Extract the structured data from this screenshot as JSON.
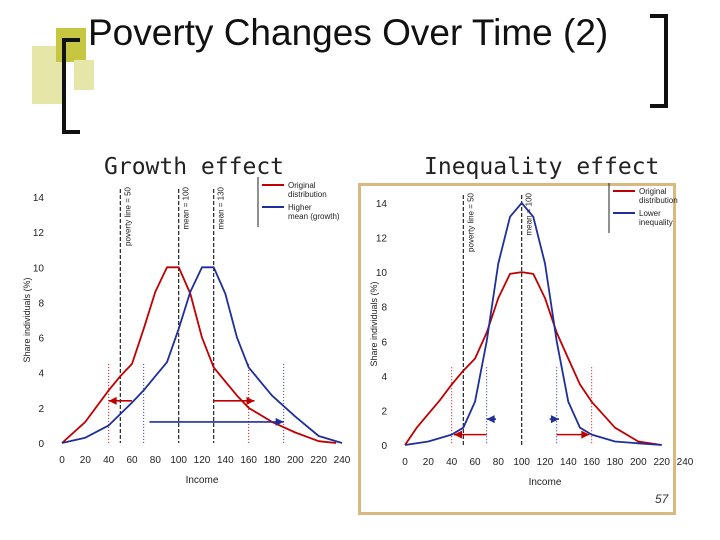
{
  "slide": {
    "title": "Poverty Changes Over Time (2)",
    "page_number": "57",
    "colors": {
      "accent_olive": "#c6c640",
      "accent_light": "#e6e6a8",
      "bracket": "#111111",
      "frame": "#d9b980"
    }
  },
  "subtitles": {
    "left": "Growth effect",
    "right": "Inequality effect"
  },
  "chart_data": [
    {
      "type": "line",
      "title": "Growth effect",
      "xlabel": "Income",
      "ylabel": "Share individuals (%)",
      "xlim": [
        0,
        240
      ],
      "ylim": [
        0,
        14
      ],
      "xticks": [
        0,
        20,
        40,
        60,
        80,
        100,
        120,
        140,
        160,
        180,
        200,
        220,
        240
      ],
      "yticks": [
        0,
        2,
        4,
        6,
        8,
        10,
        12,
        14
      ],
      "grid": false,
      "legend_position": "top-right",
      "vlines": [
        {
          "x": 50,
          "label": "poverty line = 50",
          "style": "dashed"
        },
        {
          "x": 100,
          "label": "mean = 100",
          "style": "dashed"
        },
        {
          "x": 130,
          "label": "mean = 130",
          "style": "dashed"
        }
      ],
      "range_lines": [
        {
          "x": 40,
          "color": "#c00000"
        },
        {
          "x": 160,
          "color": "#c00000"
        },
        {
          "x": 70,
          "color": "#1f2f9a"
        },
        {
          "x": 190,
          "color": "#1f2f9a"
        }
      ],
      "arrows": [
        {
          "from": 60,
          "to": 40,
          "y": 2.4,
          "color": "#c00000"
        },
        {
          "from": 130,
          "to": 165,
          "y": 2.4,
          "color": "#c00000"
        },
        {
          "from": 75,
          "to": 190,
          "y": 1.2,
          "color": "#1f2f9a"
        }
      ],
      "series": [
        {
          "name": "Original distribution",
          "color": "#c00000",
          "x": [
            0,
            20,
            40,
            50,
            60,
            70,
            80,
            90,
            100,
            110,
            120,
            130,
            140,
            150,
            160,
            180,
            200,
            220,
            235
          ],
          "y": [
            0.0,
            1.2,
            3.0,
            3.8,
            4.5,
            6.5,
            8.6,
            10.0,
            10.0,
            8.5,
            6.0,
            4.3,
            3.5,
            2.7,
            2.0,
            1.2,
            0.6,
            0.1,
            0.0
          ]
        },
        {
          "name": "Higher mean (growth)",
          "color": "#1f2f9a",
          "x": [
            0,
            20,
            40,
            60,
            70,
            80,
            90,
            100,
            110,
            120,
            130,
            140,
            150,
            160,
            170,
            180,
            200,
            220,
            240
          ],
          "y": [
            0.0,
            0.3,
            1.0,
            2.3,
            3.0,
            3.8,
            4.6,
            6.5,
            8.6,
            10.0,
            10.0,
            8.5,
            6.0,
            4.3,
            3.5,
            2.7,
            1.5,
            0.4,
            0.0
          ]
        }
      ]
    },
    {
      "type": "line",
      "title": "Inequality effect",
      "xlabel": "Income",
      "ylabel": "Share individuals (%)",
      "xlim": [
        0,
        240
      ],
      "ylim": [
        0,
        14
      ],
      "xticks": [
        0,
        20,
        40,
        60,
        80,
        100,
        120,
        140,
        160,
        180,
        200,
        220,
        240
      ],
      "yticks": [
        0,
        2,
        4,
        6,
        8,
        10,
        12,
        14
      ],
      "grid": false,
      "legend_position": "top-right",
      "vlines": [
        {
          "x": 50,
          "label": "poverty line = 50",
          "style": "dashed"
        },
        {
          "x": 100,
          "label": "mean = 100",
          "style": "dashed"
        }
      ],
      "range_lines": [
        {
          "x": 40,
          "color": "#c00000"
        },
        {
          "x": 160,
          "color": "#c00000"
        },
        {
          "x": 70,
          "color": "#1f2f9a"
        },
        {
          "x": 130,
          "color": "#1f2f9a"
        }
      ],
      "arrows": [
        {
          "from": 70,
          "to": 42,
          "y": 0.6,
          "color": "#c00000"
        },
        {
          "from": 130,
          "to": 158,
          "y": 0.6,
          "color": "#c00000"
        },
        {
          "from": 78,
          "to": 70,
          "y": 1.5,
          "color": "#1f2f9a"
        },
        {
          "from": 124,
          "to": 132,
          "y": 1.5,
          "color": "#1f2f9a"
        }
      ],
      "series": [
        {
          "name": "Original distribution",
          "color": "#c00000",
          "x": [
            0,
            10,
            20,
            30,
            40,
            50,
            60,
            70,
            80,
            90,
            100,
            110,
            120,
            130,
            140,
            150,
            160,
            180,
            200,
            220
          ],
          "y": [
            0.0,
            1.0,
            1.8,
            2.6,
            3.5,
            4.3,
            5.0,
            6.5,
            8.5,
            9.9,
            10.0,
            9.9,
            8.5,
            6.5,
            5.0,
            3.5,
            2.5,
            1.0,
            0.2,
            0.0
          ]
        },
        {
          "name": "Lower inequality",
          "color": "#1f2f9a",
          "x": [
            0,
            20,
            40,
            50,
            60,
            70,
            80,
            90,
            100,
            110,
            120,
            130,
            140,
            150,
            160,
            180,
            200,
            220
          ],
          "y": [
            0.0,
            0.2,
            0.6,
            1.0,
            2.5,
            6.0,
            10.5,
            13.2,
            14.0,
            13.2,
            10.5,
            6.0,
            2.5,
            1.0,
            0.6,
            0.2,
            0.1,
            0.0
          ]
        }
      ]
    }
  ]
}
